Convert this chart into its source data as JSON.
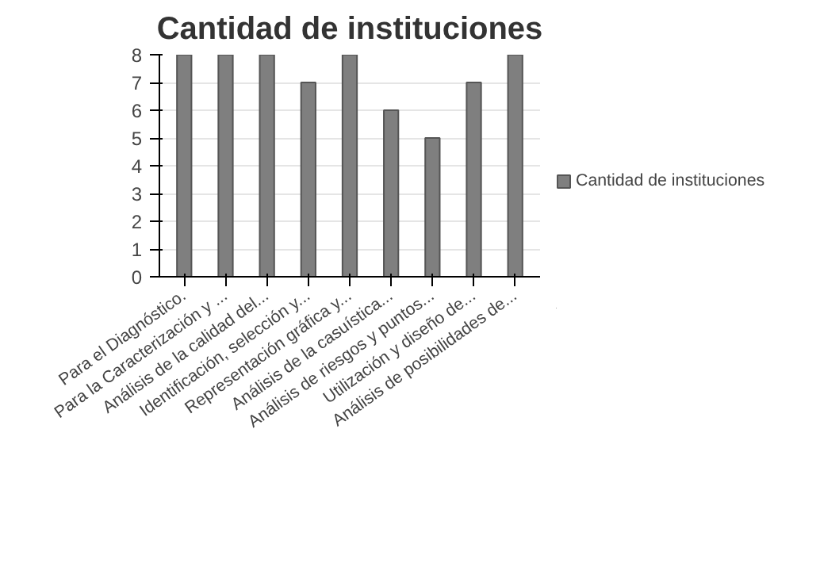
{
  "chart_data": {
    "type": "bar",
    "title": "Cantidad de instituciones",
    "categories": [
      "Para el Diagnóstico.",
      "Para la Caracterización y ...",
      "Análisis de la calidad del...",
      "Identificación, selección y...",
      "Representación gráfica y...",
      "Análisis de la casuística...",
      "Análisis de riesgos y puntos...",
      "Utilización y diseño de...",
      "Análisis de posibilidades de..."
    ],
    "series": [
      {
        "name": "Cantidad de instituciones",
        "color": "#7f7f7f",
        "values": [
          8,
          8,
          8,
          7,
          8,
          6,
          5,
          7,
          8
        ]
      }
    ],
    "ylim": [
      0,
      8
    ],
    "yticks": [
      0,
      1,
      2,
      3,
      4,
      5,
      6,
      7,
      8
    ],
    "grid": "y",
    "legend": "right"
  }
}
